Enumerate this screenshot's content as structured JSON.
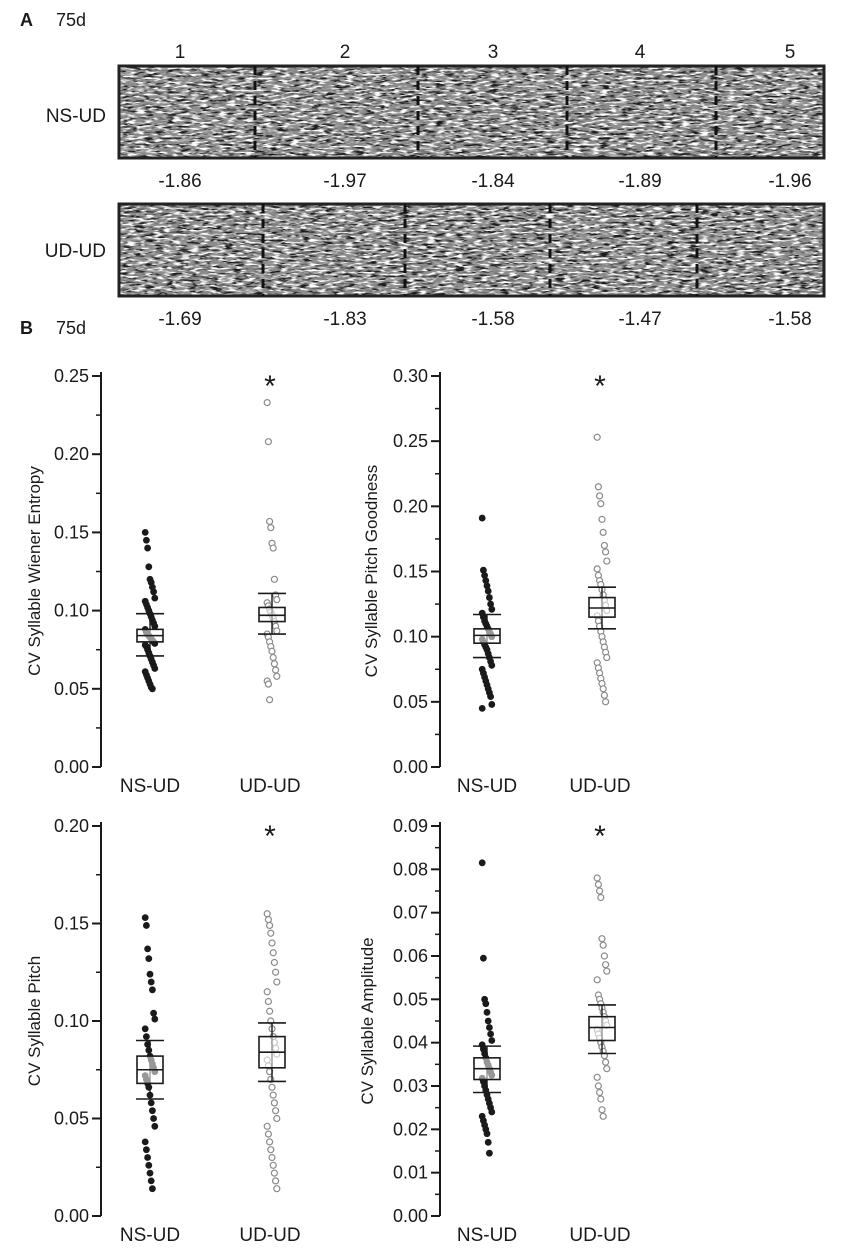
{
  "panel_a": {
    "letter": "A",
    "age": "75d",
    "columns": [
      "1",
      "2",
      "3",
      "4",
      "5"
    ],
    "rows": [
      {
        "label": "NS-UD",
        "values": [
          "-1.86",
          "-1.97",
          "-1.84",
          "-1.89",
          "-1.96"
        ]
      },
      {
        "label": "UD-UD",
        "values": [
          "-1.69",
          "-1.83",
          "-1.58",
          "-1.47",
          "-1.58"
        ]
      }
    ]
  },
  "panel_b": {
    "letter": "B",
    "age": "75d",
    "significance_mark": "*"
  },
  "colors": {
    "spectrogram_bg": "#8c8c8c",
    "filled_marker": "#1a1a1a",
    "open_marker": "#8a8a8a"
  },
  "chart_data": [
    {
      "type": "scatter",
      "ylabel": "CV Syllable Wiener Entropy",
      "ylim": [
        0,
        0.25
      ],
      "yticks": [
        "0.00",
        "0.05",
        "0.10",
        "0.15",
        "0.20",
        "0.25"
      ],
      "categories": [
        "NS-UD",
        "UD-UD"
      ],
      "significant": true,
      "series": [
        {
          "name": "NS-UD",
          "marker": "filled",
          "points": [
            0.15,
            0.145,
            0.14,
            0.128,
            0.12,
            0.118,
            0.115,
            0.112,
            0.108,
            0.106,
            0.104,
            0.102,
            0.1,
            0.098,
            0.096,
            0.094,
            0.092,
            0.09,
            0.088,
            0.086,
            0.085,
            0.084,
            0.083,
            0.082,
            0.081,
            0.08,
            0.079,
            0.078,
            0.077,
            0.075,
            0.073,
            0.071,
            0.069,
            0.067,
            0.065,
            0.063,
            0.061,
            0.059,
            0.057,
            0.055,
            0.053,
            0.051,
            0.05
          ],
          "box": {
            "q1": 0.08,
            "median": 0.084,
            "q3": 0.088
          },
          "whiskers": [
            0.071,
            0.098
          ]
        },
        {
          "name": "UD-UD",
          "marker": "open",
          "points": [
            0.233,
            0.208,
            0.157,
            0.153,
            0.143,
            0.14,
            0.12,
            0.11,
            0.107,
            0.105,
            0.103,
            0.101,
            0.099,
            0.097,
            0.095,
            0.093,
            0.09,
            0.087,
            0.085,
            0.083,
            0.08,
            0.077,
            0.074,
            0.07,
            0.066,
            0.062,
            0.058,
            0.055,
            0.053,
            0.043
          ],
          "box": {
            "q1": 0.093,
            "median": 0.097,
            "q3": 0.102
          },
          "whiskers": [
            0.085,
            0.111
          ]
        }
      ]
    },
    {
      "type": "scatter",
      "ylabel": "CV Syllable Pitch Goodness",
      "ylim": [
        0,
        0.3
      ],
      "yticks": [
        "0.00",
        "0.05",
        "0.10",
        "0.15",
        "0.20",
        "0.25",
        "0.30"
      ],
      "categories": [
        "NS-UD",
        "UD-UD"
      ],
      "significant": true,
      "series": [
        {
          "name": "NS-UD",
          "marker": "filled",
          "points": [
            0.191,
            0.151,
            0.147,
            0.143,
            0.139,
            0.135,
            0.13,
            0.125,
            0.121,
            0.118,
            0.115,
            0.112,
            0.11,
            0.108,
            0.106,
            0.104,
            0.102,
            0.1,
            0.098,
            0.096,
            0.094,
            0.092,
            0.09,
            0.087,
            0.084,
            0.081,
            0.078,
            0.075,
            0.072,
            0.069,
            0.066,
            0.063,
            0.06,
            0.057,
            0.054,
            0.048,
            0.045
          ],
          "box": {
            "q1": 0.095,
            "median": 0.101,
            "q3": 0.106
          },
          "whiskers": [
            0.084,
            0.117
          ]
        },
        {
          "name": "UD-UD",
          "marker": "open",
          "points": [
            0.253,
            0.215,
            0.208,
            0.202,
            0.19,
            0.18,
            0.17,
            0.165,
            0.158,
            0.152,
            0.147,
            0.143,
            0.14,
            0.136,
            0.132,
            0.128,
            0.124,
            0.12,
            0.116,
            0.112,
            0.108,
            0.104,
            0.1,
            0.096,
            0.092,
            0.088,
            0.084,
            0.08,
            0.076,
            0.072,
            0.068,
            0.064,
            0.06,
            0.055,
            0.05
          ],
          "box": {
            "q1": 0.115,
            "median": 0.122,
            "q3": 0.13
          },
          "whiskers": [
            0.106,
            0.138
          ]
        }
      ]
    },
    {
      "type": "scatter",
      "ylabel": "CV Syllable Pitch",
      "ylim": [
        0,
        0.2
      ],
      "yticks": [
        "0.00",
        "0.05",
        "0.10",
        "0.15",
        "0.20"
      ],
      "categories": [
        "NS-UD",
        "UD-UD"
      ],
      "significant": true,
      "series": [
        {
          "name": "NS-UD",
          "marker": "filled",
          "points": [
            0.153,
            0.149,
            0.137,
            0.132,
            0.124,
            0.12,
            0.116,
            0.104,
            0.101,
            0.096,
            0.092,
            0.088,
            0.085,
            0.082,
            0.08,
            0.078,
            0.076,
            0.074,
            0.072,
            0.07,
            0.068,
            0.066,
            0.062,
            0.058,
            0.054,
            0.05,
            0.046,
            0.038,
            0.034,
            0.03,
            0.026,
            0.022,
            0.018,
            0.014
          ],
          "box": {
            "q1": 0.068,
            "median": 0.075,
            "q3": 0.082
          },
          "whiskers": [
            0.06,
            0.09
          ]
        },
        {
          "name": "UD-UD",
          "marker": "open",
          "points": [
            0.155,
            0.152,
            0.149,
            0.145,
            0.14,
            0.135,
            0.13,
            0.125,
            0.12,
            0.115,
            0.11,
            0.105,
            0.1,
            0.096,
            0.092,
            0.089,
            0.086,
            0.083,
            0.08,
            0.077,
            0.074,
            0.07,
            0.066,
            0.062,
            0.058,
            0.054,
            0.05,
            0.046,
            0.042,
            0.038,
            0.034,
            0.03,
            0.026,
            0.022,
            0.018,
            0.014
          ],
          "box": {
            "q1": 0.076,
            "median": 0.084,
            "q3": 0.092
          },
          "whiskers": [
            0.069,
            0.099
          ]
        }
      ]
    },
    {
      "type": "scatter",
      "ylabel": "CV Syllable Amplitude",
      "ylim": [
        0,
        0.09
      ],
      "yticks": [
        "0.00",
        "0.01",
        "0.02",
        "0.03",
        "0.04",
        "0.05",
        "0.06",
        "0.07",
        "0.08",
        "0.09"
      ],
      "categories": [
        "NS-UD",
        "UD-UD"
      ],
      "significant": true,
      "series": [
        {
          "name": "NS-UD",
          "marker": "filled",
          "points": [
            0.0815,
            0.0595,
            0.05,
            0.049,
            0.047,
            0.045,
            0.0435,
            0.042,
            0.0405,
            0.0395,
            0.0385,
            0.0375,
            0.0365,
            0.0355,
            0.0348,
            0.034,
            0.0332,
            0.0325,
            0.0318,
            0.031,
            0.03,
            0.029,
            0.028,
            0.027,
            0.026,
            0.025,
            0.024,
            0.023,
            0.022,
            0.021,
            0.02,
            0.019,
            0.017,
            0.0145
          ],
          "box": {
            "q1": 0.0315,
            "median": 0.034,
            "q3": 0.0365
          },
          "whiskers": [
            0.0285,
            0.0392
          ]
        },
        {
          "name": "UD-UD",
          "marker": "open",
          "points": [
            0.078,
            0.0765,
            0.075,
            0.0735,
            0.064,
            0.0625,
            0.06,
            0.058,
            0.0565,
            0.0545,
            0.051,
            0.05,
            0.049,
            0.048,
            0.047,
            0.046,
            0.045,
            0.044,
            0.043,
            0.042,
            0.041,
            0.04,
            0.039,
            0.038,
            0.037,
            0.0355,
            0.034,
            0.032,
            0.03,
            0.0285,
            0.027,
            0.0245,
            0.023
          ],
          "box": {
            "q1": 0.0405,
            "median": 0.0435,
            "q3": 0.046
          },
          "whiskers": [
            0.0375,
            0.0487
          ]
        }
      ]
    }
  ]
}
